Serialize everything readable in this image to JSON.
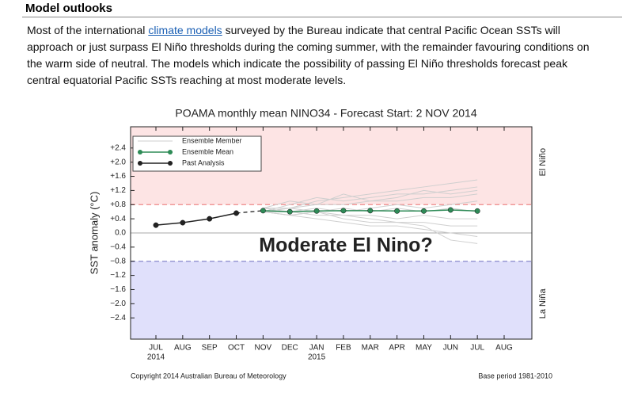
{
  "document": {
    "heading": "Model outlooks",
    "paragraph": {
      "before_link": "Most of the international ",
      "link": "climate models",
      "after_link": " surveyed by the Bureau indicate that central Pacific Ocean SSTs will",
      "lines": [
        "approach or just surpass El Niño thresholds during the coming summer, with the remainder favouring conditions on",
        "the warm side of neutral. The models which indicate the possibility of passing El Niño thresholds forecast peak",
        "central equatorial Pacific SSTs reaching at most moderate levels."
      ]
    }
  },
  "chart_data": {
    "type": "line",
    "title": "POAMA monthly mean NINO34 - Forecast Start: 2 NOV 2014",
    "y_label": "SST anomaly (°C)",
    "annotation": "Moderate El Nino?",
    "upper_region": {
      "label": "El Niño",
      "color": "#fde4e4",
      "from": 0.8
    },
    "lower_region": {
      "label": "La Niña",
      "color": "#e0e0fb",
      "to": -0.8
    },
    "footer_left": "Copyright 2014 Australian Bureau of Meteorology",
    "footer_right": "Base period 1981-2010",
    "categories": [
      "JUL",
      "AUG",
      "SEP",
      "OCT",
      "NOV",
      "DEC",
      "JAN",
      "FEB",
      "MAR",
      "APR",
      "MAY",
      "JUN",
      "JUL",
      "AUG"
    ],
    "year_labels": [
      "2014",
      null,
      null,
      null,
      null,
      null,
      "2015",
      null,
      null,
      null,
      null,
      null,
      null,
      null
    ],
    "ylim": [
      -3.0,
      3.0
    ],
    "yticks": [
      {
        "value": 2.4,
        "label": "+2.4"
      },
      {
        "value": 2.0,
        "label": "+2.0"
      },
      {
        "value": 1.6,
        "label": "+1.6"
      },
      {
        "value": 1.2,
        "label": "+1.2"
      },
      {
        "value": 0.8,
        "label": "+0.8"
      },
      {
        "value": 0.4,
        "label": "+0.4"
      },
      {
        "value": 0.0,
        "label": "0.0"
      },
      {
        "value": -0.4,
        "label": "−0.4"
      },
      {
        "value": -0.8,
        "label": "−0.8"
      },
      {
        "value": -1.2,
        "label": "−1.2"
      },
      {
        "value": -1.6,
        "label": "−1.6"
      },
      {
        "value": -2.0,
        "label": "−2.0"
      },
      {
        "value": -2.4,
        "label": "−2.4"
      }
    ],
    "legend": "upper left",
    "series": [
      {
        "name": "Ensemble Member",
        "color": "#cfcfcf",
        "members": [
          [
            null,
            null,
            null,
            null,
            0.6,
            0.7,
            0.9,
            1.0,
            1.1,
            1.2,
            1.3,
            1.4,
            1.5,
            null
          ],
          [
            null,
            null,
            null,
            null,
            0.6,
            0.8,
            1.0,
            0.9,
            1.0,
            1.1,
            1.1,
            1.2,
            1.3,
            null
          ],
          [
            null,
            null,
            null,
            null,
            0.7,
            0.7,
            0.8,
            0.8,
            0.9,
            0.9,
            1.0,
            1.0,
            1.1,
            null
          ],
          [
            null,
            null,
            null,
            null,
            0.6,
            0.6,
            0.7,
            0.6,
            0.7,
            0.8,
            0.7,
            0.8,
            0.9,
            null
          ],
          [
            null,
            null,
            null,
            null,
            0.6,
            0.5,
            0.6,
            0.5,
            0.5,
            0.4,
            0.5,
            0.4,
            0.4,
            null
          ],
          [
            null,
            null,
            null,
            null,
            0.7,
            0.6,
            0.5,
            0.5,
            0.4,
            0.3,
            0.3,
            0.2,
            0.2,
            null
          ],
          [
            null,
            null,
            null,
            null,
            0.6,
            0.5,
            0.4,
            0.3,
            0.2,
            0.2,
            0.1,
            0.0,
            -0.1,
            null
          ],
          [
            null,
            null,
            null,
            null,
            0.6,
            0.7,
            0.6,
            0.7,
            0.6,
            0.7,
            0.6,
            0.7,
            0.6,
            null
          ],
          [
            null,
            null,
            null,
            null,
            0.7,
            0.9,
            0.8,
            1.1,
            0.9,
            1.0,
            1.2,
            1.1,
            1.2,
            null
          ],
          [
            null,
            null,
            null,
            null,
            0.6,
            0.5,
            0.6,
            0.4,
            0.3,
            0.3,
            0.2,
            -0.2,
            -0.3,
            null
          ]
        ]
      },
      {
        "name": "Ensemble Mean",
        "color": "#2e8b57",
        "values": [
          null,
          null,
          null,
          null,
          0.63,
          0.6,
          0.62,
          0.63,
          0.63,
          0.62,
          0.62,
          0.65,
          0.62,
          null
        ]
      },
      {
        "name": "Past Analysis",
        "color": "#222222",
        "values": [
          0.22,
          0.29,
          0.4,
          0.56,
          null,
          null,
          null,
          null,
          null,
          null,
          null,
          null,
          null,
          null
        ]
      }
    ]
  }
}
